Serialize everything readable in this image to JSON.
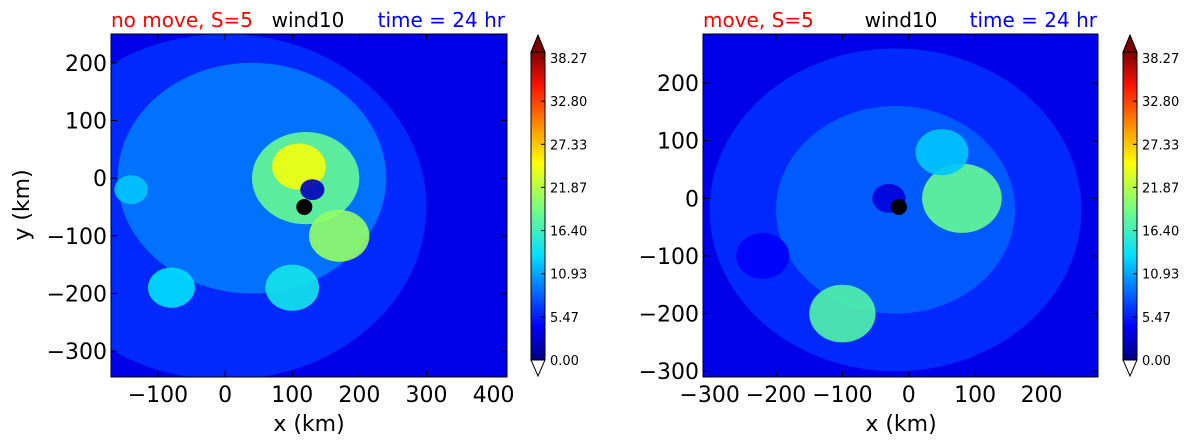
{
  "chart_data": [
    {
      "type": "heatmap",
      "title_left": "no move, S=5",
      "title_left_color": "#ff0000",
      "title_center": "wind10",
      "title_right": "time = 24 hr",
      "title_right_color": "#0000ff",
      "xlabel": "x (km)",
      "ylabel": "y (km)",
      "xlim": [
        -170,
        420
      ],
      "ylim": [
        -345,
        250
      ],
      "xticks": [
        -100,
        0,
        100,
        200,
        300,
        400
      ],
      "xtick_labels": [
        "−100",
        "0",
        "100",
        "200",
        "300",
        "400"
      ],
      "yticks": [
        200,
        100,
        0,
        -100,
        -200,
        -300
      ],
      "ytick_labels": [
        "200",
        "100",
        "0",
        "−100",
        "−200",
        "−300"
      ],
      "center_marker": {
        "x": 118,
        "y": -50
      },
      "colorbar": {
        "min": 0,
        "max": 38.27,
        "extend": "both",
        "ticks": [
          "38.27",
          "32.80",
          "27.33",
          "21.87",
          "16.40",
          "10.93",
          "5.47",
          "0.00"
        ]
      },
      "features": [
        {
          "x": 0,
          "y": -50,
          "r": 300,
          "value": 6
        },
        {
          "x": 40,
          "y": 0,
          "r": 200,
          "value": 9
        },
        {
          "x": 120,
          "y": 0,
          "r": 80,
          "value": 18
        },
        {
          "x": 110,
          "y": 20,
          "r": 40,
          "value": 24
        },
        {
          "x": 170,
          "y": -100,
          "r": 45,
          "value": 20
        },
        {
          "x": -80,
          "y": -190,
          "r": 35,
          "value": 13
        },
        {
          "x": 100,
          "y": -190,
          "r": 40,
          "value": 14
        },
        {
          "x": -140,
          "y": -20,
          "r": 25,
          "value": 12
        },
        {
          "x": 130,
          "y": -20,
          "r": 18,
          "value": 2
        }
      ]
    },
    {
      "type": "heatmap",
      "title_left": "move, S=5",
      "title_left_color": "#ff0000",
      "title_center": "wind10",
      "title_right": "time = 24 hr",
      "title_right_color": "#0000ff",
      "xlabel": "x (km)",
      "ylabel": "",
      "xlim": [
        -310,
        285
      ],
      "ylim": [
        -310,
        285
      ],
      "xticks": [
        -300,
        -200,
        -100,
        0,
        100,
        200
      ],
      "xtick_labels": [
        "−300",
        "−200",
        "−100",
        "0",
        "100",
        "200"
      ],
      "yticks": [
        200,
        100,
        0,
        -100,
        -200,
        -300
      ],
      "ytick_labels": [
        "200",
        "100",
        "0",
        "−100",
        "−200",
        "−300"
      ],
      "center_marker": {
        "x": -15,
        "y": -15
      },
      "colorbar": {
        "min": 0,
        "max": 38.27,
        "extend": "both",
        "ticks": [
          "38.27",
          "32.80",
          "27.33",
          "21.87",
          "16.40",
          "10.93",
          "5.47",
          "0.00"
        ]
      },
      "features": [
        {
          "x": -20,
          "y": -20,
          "r": 280,
          "value": 6
        },
        {
          "x": -20,
          "y": -20,
          "r": 180,
          "value": 8
        },
        {
          "x": 80,
          "y": 0,
          "r": 60,
          "value": 18
        },
        {
          "x": -100,
          "y": -200,
          "r": 50,
          "value": 17
        },
        {
          "x": 50,
          "y": 80,
          "r": 40,
          "value": 12
        },
        {
          "x": -220,
          "y": -100,
          "r": 40,
          "value": 4
        },
        {
          "x": -30,
          "y": 0,
          "r": 25,
          "value": 3
        }
      ]
    }
  ]
}
